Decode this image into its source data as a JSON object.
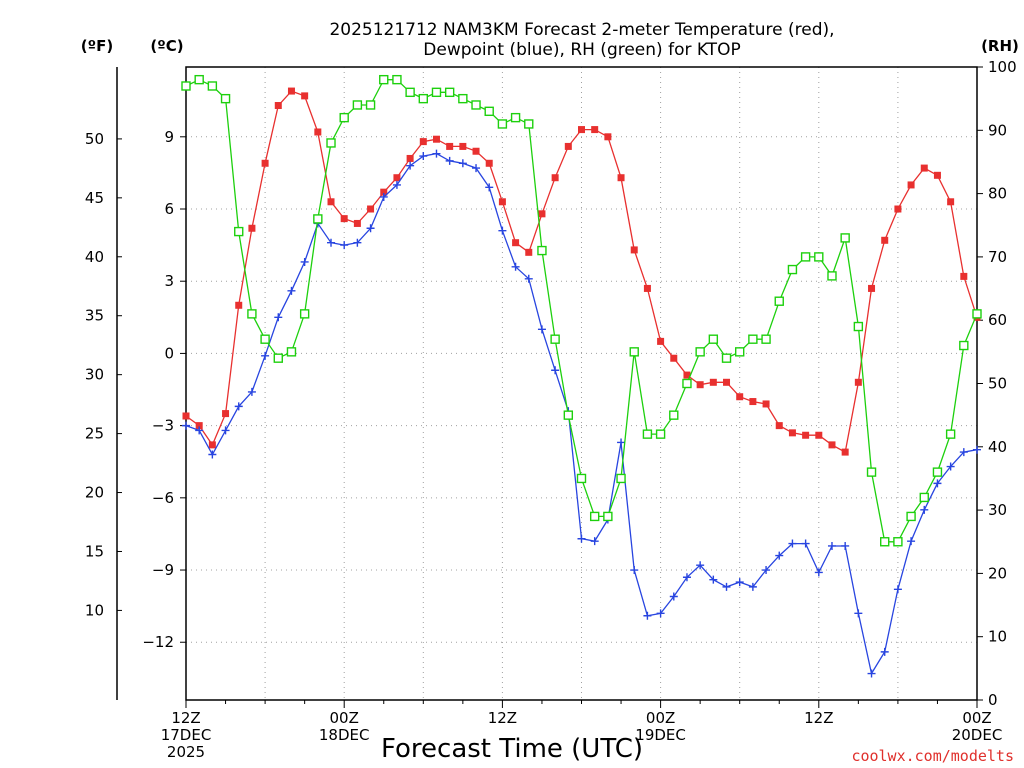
{
  "chart_data": {
    "type": "line",
    "title": [
      "2025121712 NAM3KM Forecast 2-meter Temperature (red),",
      "Dewpoint (blue), RH (green) for KTOP"
    ],
    "xlabel": "Forecast Time (UTC)",
    "credit": "coolwx.com/modelts",
    "units": {
      "fahrenheit": "(ºF)",
      "celsius": "(ºC)",
      "rh": "(RH)"
    },
    "x_range_hours": [
      0,
      60
    ],
    "x_ticks": [
      {
        "hour": 0,
        "lines": [
          "12Z",
          "17DEC",
          "2025"
        ]
      },
      {
        "hour": 12,
        "lines": [
          "00Z",
          "18DEC"
        ]
      },
      {
        "hour": 24,
        "lines": [
          "12Z"
        ]
      },
      {
        "hour": 36,
        "lines": [
          "00Z",
          "19DEC"
        ]
      },
      {
        "hour": 48,
        "lines": [
          "12Z"
        ]
      },
      {
        "hour": 60,
        "lines": [
          "00Z",
          "20DEC"
        ]
      }
    ],
    "celsius_range": [
      -14.4,
      11.9
    ],
    "celsius_ticks": [
      "9",
      "6",
      "3",
      "0",
      "−3",
      "−6",
      "−9",
      "−12"
    ],
    "celsius_tick_values": [
      9,
      6,
      3,
      0,
      -3,
      -6,
      -9,
      -12
    ],
    "fahrenheit_ticks": [
      "50",
      "45",
      "40",
      "35",
      "30",
      "25",
      "20",
      "15",
      "10"
    ],
    "fahrenheit_tick_values": [
      50,
      45,
      40,
      35,
      30,
      25,
      20,
      15,
      10
    ],
    "rh_range": [
      0,
      100
    ],
    "rh_ticks": [
      "100",
      "90",
      "80",
      "70",
      "60",
      "50",
      "40",
      "30",
      "20",
      "10",
      "0"
    ],
    "rh_tick_values": [
      100,
      90,
      80,
      70,
      60,
      50,
      40,
      30,
      20,
      10,
      0
    ],
    "series": [
      {
        "name": "Temperature",
        "units": "C",
        "color": "#e8302f",
        "marker": "filled-square",
        "axis": "left",
        "hours": [
          0,
          1,
          2,
          3,
          4,
          5,
          6,
          7,
          8,
          9,
          10,
          11,
          12,
          13,
          14,
          15,
          16,
          17,
          18,
          19,
          20,
          21,
          22,
          23,
          24,
          25,
          26,
          27,
          28,
          29,
          30,
          31,
          32,
          33,
          34,
          35,
          36,
          37,
          38,
          39,
          40,
          41,
          42,
          43,
          44,
          45,
          46,
          47,
          48,
          49,
          50,
          51,
          52,
          53,
          54,
          55,
          56,
          57,
          58,
          59,
          60
        ],
        "values": [
          -2.6,
          -3.0,
          -3.8,
          -2.5,
          2.0,
          5.2,
          7.9,
          10.3,
          10.9,
          10.7,
          9.2,
          6.3,
          5.6,
          5.4,
          6.0,
          6.7,
          7.3,
          8.1,
          8.8,
          8.9,
          8.6,
          8.6,
          8.4,
          7.9,
          6.3,
          4.6,
          4.2,
          5.8,
          7.3,
          8.6,
          9.3,
          9.3,
          9.0,
          7.3,
          4.3,
          2.7,
          0.5,
          -0.2,
          -0.9,
          -1.3,
          -1.2,
          -1.2,
          -1.8,
          -2.0,
          -2.1,
          -3.0,
          -3.3,
          -3.4,
          -3.4,
          -3.8,
          -4.1,
          -1.2,
          2.7,
          4.7,
          6.0,
          7.0,
          7.7,
          7.4,
          6.3,
          3.2,
          1.5
        ]
      },
      {
        "name": "Dewpoint",
        "units": "C",
        "color": "#2845e0",
        "marker": "plus",
        "axis": "left",
        "hours": [
          0,
          1,
          2,
          3,
          4,
          5,
          6,
          7,
          8,
          9,
          10,
          11,
          12,
          13,
          14,
          15,
          16,
          17,
          18,
          19,
          20,
          21,
          22,
          23,
          24,
          25,
          26,
          27,
          28,
          29,
          30,
          31,
          32,
          33,
          34,
          35,
          36,
          37,
          38,
          39,
          40,
          41,
          42,
          43,
          44,
          45,
          46,
          47,
          48,
          49,
          50,
          51,
          52,
          53,
          54,
          55,
          56,
          57,
          58,
          59,
          60
        ],
        "values": [
          -3.0,
          -3.2,
          -4.2,
          -3.2,
          -2.2,
          -1.6,
          -0.1,
          1.5,
          2.6,
          3.8,
          5.4,
          4.6,
          4.5,
          4.6,
          5.2,
          6.5,
          7.0,
          7.8,
          8.2,
          8.3,
          8.0,
          7.9,
          7.7,
          6.9,
          5.1,
          3.6,
          3.1,
          1.0,
          -0.7,
          -2.4,
          -7.7,
          -7.8,
          -6.9,
          -3.7,
          -9.0,
          -10.9,
          -10.8,
          -10.1,
          -9.3,
          -8.8,
          -9.4,
          -9.7,
          -9.5,
          -9.7,
          -9.0,
          -8.4,
          -7.9,
          -7.9,
          -9.1,
          -8.0,
          -8.0,
          -10.8,
          -13.3,
          -12.4,
          -9.8,
          -7.8,
          -6.5,
          -5.4,
          -4.7,
          -4.1,
          -4.0
        ]
      },
      {
        "name": "RH",
        "units": "%",
        "color": "#1dd00d",
        "marker": "open-square",
        "axis": "right",
        "hours": [
          0,
          1,
          2,
          3,
          4,
          5,
          6,
          7,
          8,
          9,
          10,
          11,
          12,
          13,
          14,
          15,
          16,
          17,
          18,
          19,
          20,
          21,
          22,
          23,
          24,
          25,
          26,
          27,
          28,
          29,
          30,
          31,
          32,
          33,
          34,
          35,
          36,
          37,
          38,
          39,
          40,
          41,
          42,
          43,
          44,
          45,
          46,
          47,
          48,
          49,
          50,
          51,
          52,
          53,
          54,
          55,
          56,
          57,
          58,
          59,
          60
        ],
        "values": [
          97,
          98,
          97,
          95,
          74,
          61,
          57,
          54,
          55,
          61,
          76,
          88,
          92,
          94,
          94,
          98,
          98,
          96,
          95,
          96,
          96,
          95,
          94,
          93,
          91,
          92,
          91,
          71,
          57,
          45,
          35,
          29,
          29,
          35,
          55,
          42,
          42,
          45,
          50,
          55,
          57,
          54,
          55,
          57,
          57,
          63,
          68,
          70,
          70,
          67,
          73,
          59,
          36,
          25,
          25,
          29,
          32,
          36,
          42,
          56,
          61
        ]
      }
    ]
  }
}
